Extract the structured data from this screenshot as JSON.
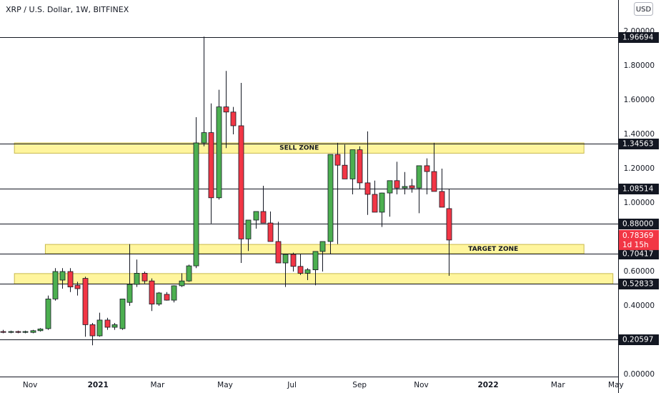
{
  "chart_data": {
    "type": "candlestick",
    "title": "XRP / U.S. Dollar, 1W, BITFINEX",
    "currency_button": "USD",
    "up_color": "#4caf50",
    "down_color": "#f23645",
    "candles": {
      "open": [
        0.25,
        0.245,
        0.25,
        0.245,
        0.245,
        0.255,
        0.267,
        0.44,
        0.55,
        0.6,
        0.52,
        0.56,
        0.29,
        0.225,
        0.317,
        0.275,
        0.267,
        0.42,
        0.525,
        0.59,
        0.545,
        0.41,
        0.467,
        0.433,
        0.517,
        0.545,
        0.633,
        1.35,
        1.41,
        1.03,
        1.56,
        1.53,
        1.45,
        0.79,
        0.9,
        0.95,
        0.883,
        0.775,
        0.65,
        0.7,
        0.63,
        0.59,
        0.61,
        0.717,
        0.775,
        1.283,
        1.22,
        1.14,
        1.31,
        1.117,
        1.05,
        0.946,
        1.058,
        1.13,
        1.087,
        1.1,
        1.087,
        1.217,
        1.183,
        1.067,
        0.967
      ],
      "high": [
        0.26,
        0.255,
        0.255,
        0.255,
        0.26,
        0.27,
        0.46,
        0.62,
        0.62,
        0.62,
        0.54,
        0.57,
        0.3,
        0.36,
        0.33,
        0.3,
        0.39,
        0.76,
        0.67,
        0.6,
        0.56,
        0.48,
        0.48,
        0.52,
        0.59,
        0.64,
        1.5,
        1.97,
        1.58,
        1.66,
        1.77,
        1.56,
        1.7,
        0.85,
        0.95,
        1.1,
        0.95,
        0.89,
        0.68,
        0.71,
        0.7,
        0.62,
        0.65,
        0.74,
        0.8,
        1.35,
        1.34,
        1.31,
        1.33,
        1.417,
        1.13,
        1.06,
        1.07,
        1.24,
        1.18,
        1.14,
        1.12,
        1.26,
        1.35,
        1.2,
        1.08
      ],
      "low": [
        0.24,
        0.24,
        0.24,
        0.24,
        0.24,
        0.25,
        0.26,
        0.43,
        0.5,
        0.48,
        0.46,
        0.22,
        0.17,
        0.22,
        0.26,
        0.26,
        0.26,
        0.4,
        0.51,
        0.53,
        0.37,
        0.4,
        0.43,
        0.42,
        0.51,
        0.54,
        0.62,
        1.33,
        0.88,
        1.02,
        1.32,
        1.4,
        0.65,
        0.72,
        0.85,
        0.9,
        0.8,
        0.72,
        0.51,
        0.6,
        0.58,
        0.55,
        0.52,
        0.6,
        0.7,
        0.76,
        1.2,
        1.05,
        1.08,
        0.93,
        1.0,
        0.86,
        0.92,
        1.05,
        1.05,
        1.06,
        0.94,
        1.05,
        1.12,
        1.05,
        0.575
      ],
      "close": [
        0.245,
        0.25,
        0.245,
        0.25,
        0.255,
        0.265,
        0.44,
        0.6,
        0.6,
        0.51,
        0.5,
        0.29,
        0.225,
        0.317,
        0.275,
        0.29,
        0.44,
        0.525,
        0.59,
        0.545,
        0.41,
        0.475,
        0.433,
        0.517,
        0.545,
        0.633,
        1.35,
        1.41,
        1.03,
        1.56,
        1.53,
        1.45,
        0.79,
        0.9,
        0.95,
        0.883,
        0.775,
        0.65,
        0.7,
        0.63,
        0.59,
        0.61,
        0.717,
        0.775,
        1.283,
        1.22,
        1.14,
        1.31,
        1.117,
        1.05,
        0.946,
        1.058,
        1.13,
        1.087,
        1.096,
        1.087,
        1.217,
        1.183,
        1.067,
        0.975,
        0.78369
      ]
    },
    "xlim": [
      -0.4,
      82.8
    ],
    "xticks": [
      {
        "value": 3.65,
        "label": "Nov"
      },
      {
        "value": 12.8,
        "label": "2021"
      },
      {
        "value": 20.8,
        "label": "Mar"
      },
      {
        "value": 29.9,
        "label": "May"
      },
      {
        "value": 38.9,
        "label": "Jul"
      },
      {
        "value": 48,
        "label": "Sep"
      },
      {
        "value": 56.3,
        "label": "Nov"
      },
      {
        "value": 65.3,
        "label": "2022"
      },
      {
        "value": 74.7,
        "label": "Mar"
      },
      {
        "value": 82.5,
        "label": "May"
      }
    ],
    "ylim": [
      -0.0125,
      2.1833
    ],
    "yticks": [
      {
        "value": 0,
        "label": "0.00000"
      },
      {
        "value": 0.4,
        "label": "0.40000"
      },
      {
        "value": 0.6,
        "label": "0.60000"
      },
      {
        "value": 1,
        "label": "1.00000"
      },
      {
        "value": 1.2,
        "label": "1.20000"
      },
      {
        "value": 1.4,
        "label": "1.40000"
      },
      {
        "value": 1.6,
        "label": "1.60000"
      },
      {
        "value": 1.8,
        "label": "1.80000"
      },
      {
        "value": 2,
        "label": "2.00000"
      }
    ],
    "levels": [
      1.96694,
      1.34563,
      1.08514,
      {
        "value": 0.88,
        "label": "0.88000"
      },
      0.70417,
      0.52833,
      0.20597
    ],
    "zones": [
      {
        "label": "SELL ZONE",
        "top": 1.35,
        "bottom": 1.29,
        "from": 1.54,
        "to": 78.2
      },
      {
        "label": "TARGET ZONE",
        "top": 0.758,
        "bottom": 0.704,
        "from": 5.7,
        "to": 78.2
      },
      {
        "top": 0.588,
        "bottom": 0.528,
        "from": 1.54,
        "to": 82.1
      }
    ],
    "last_price": {
      "value": 0.78369,
      "countdown": "1d 15h"
    }
  }
}
